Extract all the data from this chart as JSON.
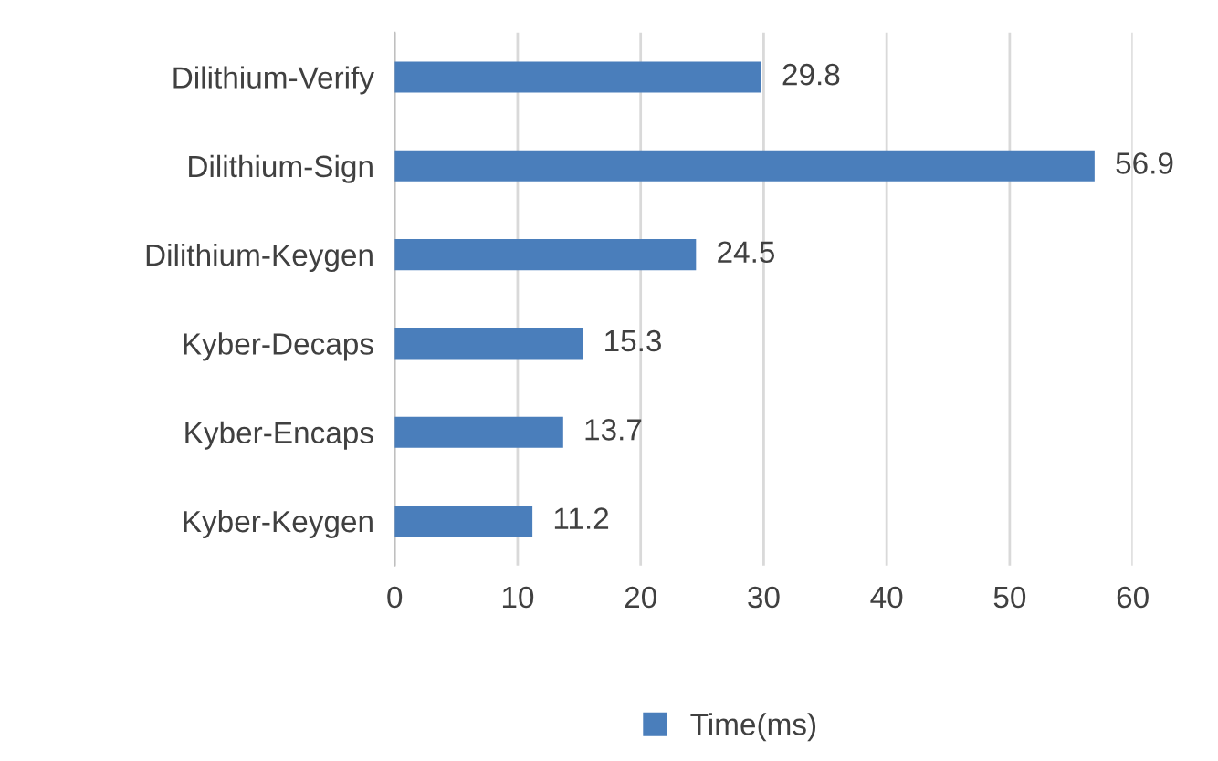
{
  "chart_data": {
    "type": "bar",
    "orientation": "horizontal",
    "categories": [
      "Dilithium-Verify",
      "Dilithium-Sign",
      "Dilithium-Keygen",
      "Kyber-Decaps",
      "Kyber-Encaps",
      "Kyber-Keygen"
    ],
    "series": [
      {
        "name": "Time(ms)",
        "color": "#4a7ebb",
        "values": [
          29.8,
          56.9,
          24.5,
          15.3,
          13.7,
          11.2
        ]
      }
    ],
    "xlim": [
      0,
      60
    ],
    "xticks": [
      0,
      10,
      20,
      30,
      40,
      50,
      60
    ],
    "grid": "x",
    "legend": "bottom",
    "data_labels": true
  }
}
